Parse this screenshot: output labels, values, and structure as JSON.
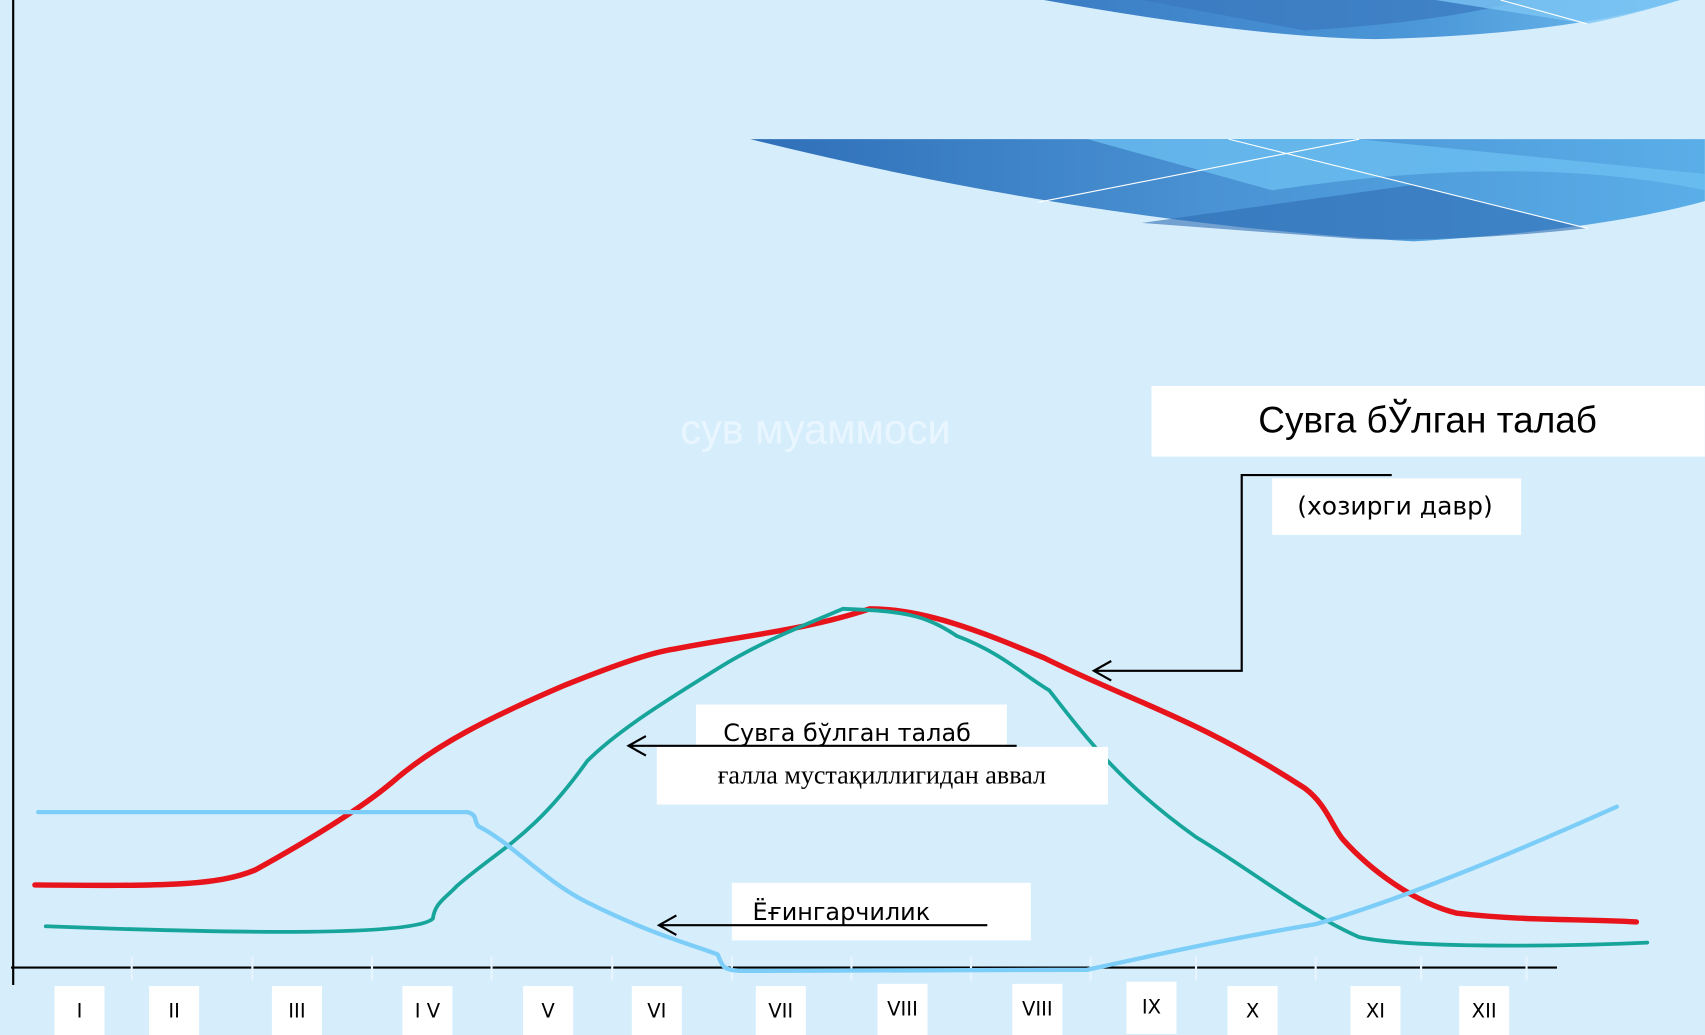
{
  "title": "сув муаммоси",
  "labels": {
    "current_demand": "Сувга бЎлган талаб",
    "current_period": "(хозирги давр)",
    "prior_demand": "Сувга бўлган талаб",
    "prior_period": "ғалла мустақиллигидан аввал",
    "rainfall": "Ёғингарчилик"
  },
  "months": [
    "I",
    "II",
    "III",
    "I V",
    "V",
    "VI",
    "VII",
    "VIII",
    "VIII",
    "IX",
    "X",
    "XI",
    "XII"
  ]
}
